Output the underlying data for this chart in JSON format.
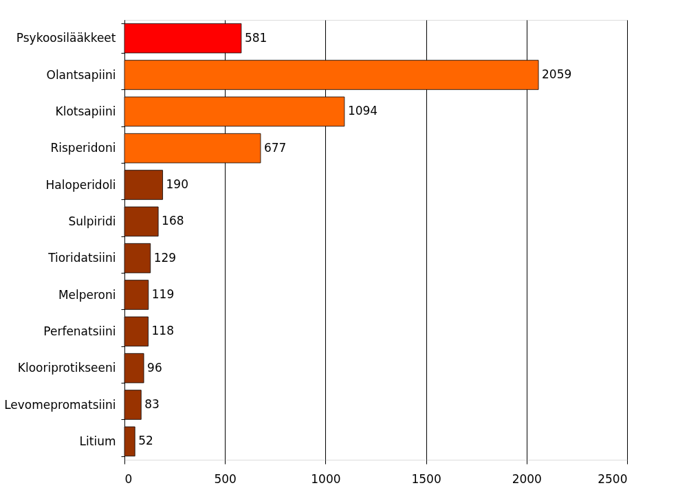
{
  "chart_data": {
    "type": "bar",
    "orientation": "horizontal",
    "categories": [
      "Psykoosilääkkeet",
      "Olantsapiini",
      "Klotsapiini",
      "Risperidoni",
      "Haloperidoli",
      "Sulpiridi",
      "Tioridatsiini",
      "Melperoni",
      "Perfenatsiini",
      "Klooriprotikseeni",
      "Levomepromatsiini",
      "Litium"
    ],
    "values": [
      581,
      2059,
      1094,
      677,
      190,
      168,
      129,
      119,
      118,
      96,
      83,
      52
    ],
    "colors": [
      "#ff0000",
      "#ff6600",
      "#ff6600",
      "#ff6600",
      "#993300",
      "#993300",
      "#993300",
      "#993300",
      "#993300",
      "#993300",
      "#993300",
      "#993300"
    ],
    "xlim": [
      0,
      2500
    ],
    "xticks": [
      0,
      500,
      1000,
      1500,
      2000,
      2500
    ],
    "grid": "x",
    "data_labels": true
  }
}
